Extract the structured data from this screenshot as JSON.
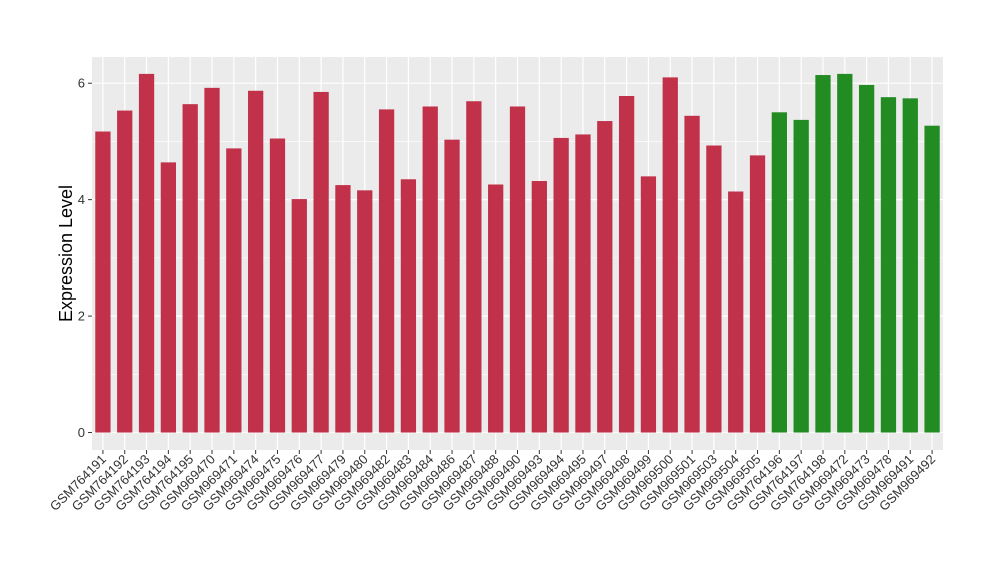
{
  "chart_data": {
    "type": "bar",
    "title": "",
    "xlabel": "",
    "ylabel": "Expression Level",
    "ylim": [
      -0.3,
      6.45
    ],
    "yticks": [
      0,
      2,
      4,
      6
    ],
    "grid": true,
    "panel_background": "#ebebeb",
    "grid_color": "#ffffff",
    "group_colors": [
      "#c1314a",
      "#228b22"
    ],
    "categories": [
      "GSM764191",
      "GSM764192",
      "GSM764193",
      "GSM764194",
      "GSM764195",
      "GSM969470",
      "GSM969471",
      "GSM969474",
      "GSM969475",
      "GSM969476",
      "GSM969477",
      "GSM969479",
      "GSM969480",
      "GSM969482",
      "GSM969483",
      "GSM969484",
      "GSM969486",
      "GSM969487",
      "GSM969488",
      "GSM969490",
      "GSM969493",
      "GSM969494",
      "GSM969495",
      "GSM969497",
      "GSM969498",
      "GSM969499",
      "GSM969500",
      "GSM969501",
      "GSM969503",
      "GSM969504",
      "GSM969505",
      "GSM764196",
      "GSM764197",
      "GSM764198",
      "GSM969472",
      "GSM969473",
      "GSM969478",
      "GSM969491",
      "GSM969492"
    ],
    "values": [
      5.17,
      5.53,
      6.16,
      4.64,
      5.64,
      5.92,
      4.88,
      5.87,
      5.05,
      4.01,
      5.85,
      4.25,
      4.16,
      5.55,
      4.35,
      5.6,
      5.03,
      5.69,
      4.26,
      5.6,
      4.32,
      5.06,
      5.12,
      5.35,
      5.78,
      4.4,
      6.1,
      5.44,
      4.93,
      4.14,
      4.76,
      5.5,
      5.37,
      6.14,
      6.16,
      5.97,
      5.76,
      5.74,
      5.27
    ],
    "groups": [
      0,
      0,
      0,
      0,
      0,
      0,
      0,
      0,
      0,
      0,
      0,
      0,
      0,
      0,
      0,
      0,
      0,
      0,
      0,
      0,
      0,
      0,
      0,
      0,
      0,
      0,
      0,
      0,
      0,
      0,
      0,
      1,
      1,
      1,
      1,
      1,
      1,
      1,
      1
    ]
  }
}
